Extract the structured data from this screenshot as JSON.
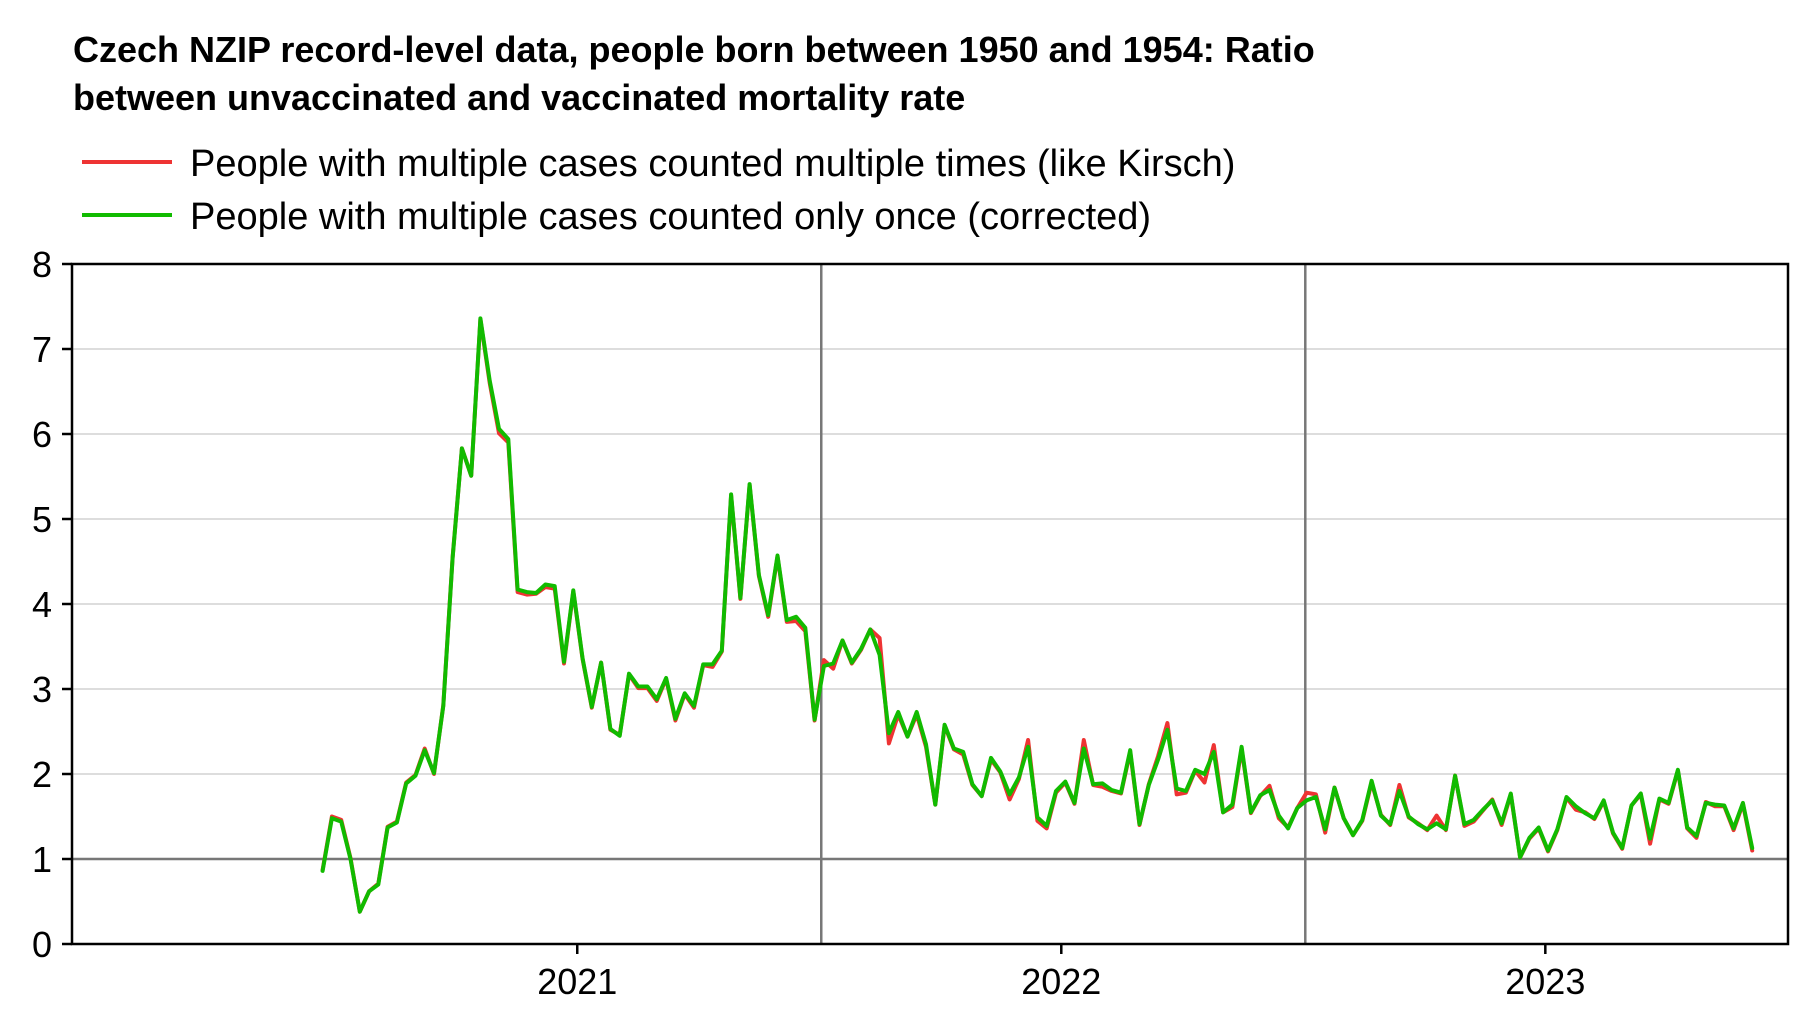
{
  "chart_data": {
    "type": "line",
    "title_lines": [
      "Czech NZIP record-level data, people born between 1950 and 1954: Ratio",
      "between unvaccinated and vaccinated mortality rate"
    ],
    "xlabel": "",
    "ylabel": "",
    "x_range": [
      "2020-06-15",
      "2023-12-31"
    ],
    "ylim": [
      0,
      8
    ],
    "y_ticks": [
      0,
      1,
      2,
      3,
      4,
      5,
      6,
      7,
      8
    ],
    "x_year_dividers": [
      "2022-01-01",
      "2023-01-01"
    ],
    "x_tick_labels": [
      {
        "label": "2021",
        "date": "2021-07-01"
      },
      {
        "label": "2022",
        "date": "2022-07-01"
      },
      {
        "label": "2023",
        "date": "2023-07-01"
      }
    ],
    "grid": "horizontal",
    "reference_line": 1,
    "legend_position": "top-left",
    "x_start": "2020-12-21",
    "x_step_days": 7,
    "series": [
      {
        "name": "People with multiple cases counted multiple times (like Kirsch)",
        "color": "#ee3333",
        "values": [
          0.87,
          1.5,
          1.46,
          1.01,
          0.38,
          0.62,
          0.71,
          1.38,
          1.44,
          1.9,
          1.99,
          2.3,
          2.0,
          2.81,
          4.55,
          5.83,
          5.51,
          7.35,
          6.6,
          6.01,
          5.9,
          4.14,
          4.11,
          4.12,
          4.2,
          4.18,
          3.3,
          4.15,
          3.35,
          2.78,
          3.31,
          2.52,
          2.46,
          3.17,
          3.01,
          3.01,
          2.86,
          3.12,
          2.63,
          2.94,
          2.78,
          3.28,
          3.26,
          3.44,
          5.28,
          4.06,
          5.4,
          4.33,
          3.85,
          4.56,
          3.79,
          3.8,
          3.68,
          2.63,
          3.34,
          3.24,
          3.57,
          3.3,
          3.46,
          3.7,
          3.6,
          2.36,
          2.7,
          2.44,
          2.7,
          2.32,
          1.64,
          2.57,
          2.29,
          2.23,
          1.87,
          1.74,
          2.17,
          2.02,
          1.7,
          1.94,
          2.4,
          1.45,
          1.36,
          1.78,
          1.9,
          1.65,
          2.4,
          1.87,
          1.85,
          1.8,
          1.77,
          2.26,
          1.4,
          1.88,
          2.21,
          2.6,
          1.76,
          1.78,
          2.04,
          1.9,
          2.34,
          1.55,
          1.61,
          2.3,
          1.54,
          1.74,
          1.86,
          1.48,
          1.37,
          1.6,
          1.78,
          1.76,
          1.31,
          1.84,
          1.48,
          1.28,
          1.45,
          1.9,
          1.52,
          1.4,
          1.87,
          1.49,
          1.42,
          1.34,
          1.51,
          1.34,
          1.98,
          1.39,
          1.44,
          1.57,
          1.7,
          1.4,
          1.76,
          1.02,
          1.24,
          1.36,
          1.09,
          1.34,
          1.72,
          1.58,
          1.55,
          1.47,
          1.68,
          1.3,
          1.12,
          1.63,
          1.76,
          1.18,
          1.7,
          1.65,
          2.04,
          1.36,
          1.25,
          1.67,
          1.62,
          1.62,
          1.34,
          1.65,
          1.1
        ]
      },
      {
        "name": "People with multiple cases counted only once (corrected)",
        "color": "#11bb00",
        "values": [
          0.86,
          1.48,
          1.44,
          1.0,
          0.38,
          0.62,
          0.7,
          1.37,
          1.43,
          1.89,
          1.98,
          2.28,
          2.01,
          2.8,
          4.54,
          5.83,
          5.51,
          7.36,
          6.63,
          6.06,
          5.94,
          4.17,
          4.14,
          4.13,
          4.23,
          4.21,
          3.32,
          4.16,
          3.36,
          2.79,
          3.31,
          2.53,
          2.45,
          3.18,
          3.03,
          3.03,
          2.88,
          3.13,
          2.65,
          2.95,
          2.8,
          3.29,
          3.29,
          3.45,
          5.29,
          4.07,
          5.41,
          4.34,
          3.87,
          4.57,
          3.81,
          3.85,
          3.72,
          2.64,
          3.27,
          3.3,
          3.57,
          3.31,
          3.47,
          3.7,
          3.4,
          2.48,
          2.73,
          2.44,
          2.73,
          2.35,
          1.64,
          2.58,
          2.3,
          2.26,
          1.88,
          1.74,
          2.19,
          2.03,
          1.76,
          1.96,
          2.32,
          1.49,
          1.39,
          1.8,
          1.91,
          1.66,
          2.3,
          1.88,
          1.89,
          1.81,
          1.78,
          2.28,
          1.41,
          1.87,
          2.17,
          2.52,
          1.83,
          1.8,
          2.05,
          2.0,
          2.26,
          1.55,
          1.64,
          2.32,
          1.55,
          1.75,
          1.81,
          1.51,
          1.36,
          1.6,
          1.69,
          1.73,
          1.35,
          1.84,
          1.48,
          1.28,
          1.46,
          1.92,
          1.51,
          1.41,
          1.8,
          1.5,
          1.41,
          1.35,
          1.42,
          1.35,
          1.98,
          1.41,
          1.46,
          1.58,
          1.69,
          1.42,
          1.77,
          1.02,
          1.25,
          1.37,
          1.1,
          1.35,
          1.73,
          1.62,
          1.54,
          1.48,
          1.69,
          1.31,
          1.13,
          1.63,
          1.77,
          1.24,
          1.71,
          1.66,
          2.05,
          1.37,
          1.27,
          1.66,
          1.64,
          1.63,
          1.36,
          1.66,
          1.13
        ]
      }
    ]
  }
}
